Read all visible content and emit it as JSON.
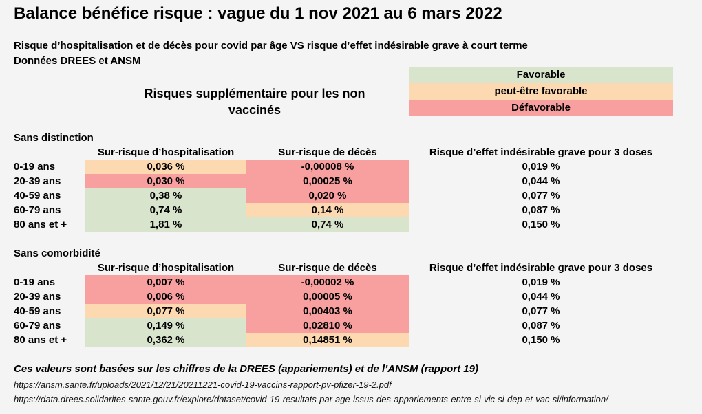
{
  "title": "Balance bénéfice risque : vague du 1 nov 2021 au 6 mars 2022",
  "subtitle1": "Risque d’hospitalisation et de décès pour covid par âge VS risque d’effet indésirable grave à court terme",
  "subtitle2": "Données DREES et ANSM",
  "risk_heading": "Risques supplémentaire pour les non vaccinés",
  "legend": {
    "favorable": "Favorable",
    "maybe": "peut-être favorable",
    "unfavorable": "Défavorable",
    "colors": {
      "favorable": "#d9e4cc",
      "maybe": "#fcd9b1",
      "unfavorable": "#f8a09f"
    }
  },
  "columns": {
    "hosp": "Sur-risque d’hospitalisation",
    "death": "Sur-risque de décès",
    "effect": "Risque d’effet indésirable grave pour 3 doses"
  },
  "sections": [
    {
      "title": "Sans distinction",
      "rows": [
        {
          "age": "0-19 ans",
          "hosp": "0,036 %",
          "hosp_class": "orange",
          "death": "-0,00008 %",
          "death_class": "red",
          "effect": "0,019 %"
        },
        {
          "age": "20-39 ans",
          "hosp": "0,030 %",
          "hosp_class": "red",
          "death": "0,00025 %",
          "death_class": "red",
          "effect": "0,044 %"
        },
        {
          "age": "40-59 ans",
          "hosp": "0,38 %",
          "hosp_class": "green",
          "death": "0,020 %",
          "death_class": "red",
          "effect": "0,077 %"
        },
        {
          "age": "60-79 ans",
          "hosp": "0,74 %",
          "hosp_class": "green",
          "death": "0,14 %",
          "death_class": "orange",
          "effect": "0,087 %"
        },
        {
          "age": "80 ans et +",
          "hosp": "1,81 %",
          "hosp_class": "green",
          "death": "0,74 %",
          "death_class": "green",
          "effect": "0,150 %"
        }
      ]
    },
    {
      "title": "Sans comorbidité",
      "rows": [
        {
          "age": "0-19 ans",
          "hosp": "0,007 %",
          "hosp_class": "red",
          "death": "-0,00002 %",
          "death_class": "red",
          "effect": "0,019 %"
        },
        {
          "age": "20-39 ans",
          "hosp": "0,006 %",
          "hosp_class": "red",
          "death": "0,00005 %",
          "death_class": "red",
          "effect": "0,044 %"
        },
        {
          "age": "40-59 ans",
          "hosp": "0,077 %",
          "hosp_class": "orange",
          "death": "0,00403 %",
          "death_class": "red",
          "effect": "0,077 %"
        },
        {
          "age": "60-79 ans",
          "hosp": "0,149 %",
          "hosp_class": "green",
          "death": "0,02810 %",
          "death_class": "red",
          "effect": "0,087 %"
        },
        {
          "age": "80 ans et +",
          "hosp": "0,362 %",
          "hosp_class": "green",
          "death": "0,14851 %",
          "death_class": "orange",
          "effect": "0,150 %"
        }
      ]
    }
  ],
  "note": "Ces valeurs sont basées sur les chiffres de la DREES (appariements) et de l’ANSM (rapport 19)",
  "links": [
    "https://ansm.sante.fr/uploads/2021/12/21/20211221-covid-19-vaccins-rapport-pv-pfizer-19-2.pdf",
    "https://data.drees.solidarites-sante.gouv.fr/explore/dataset/covid-19-resultats-par-age-issus-des-appariements-entre-si-vic-si-dep-et-vac-si/information/"
  ]
}
